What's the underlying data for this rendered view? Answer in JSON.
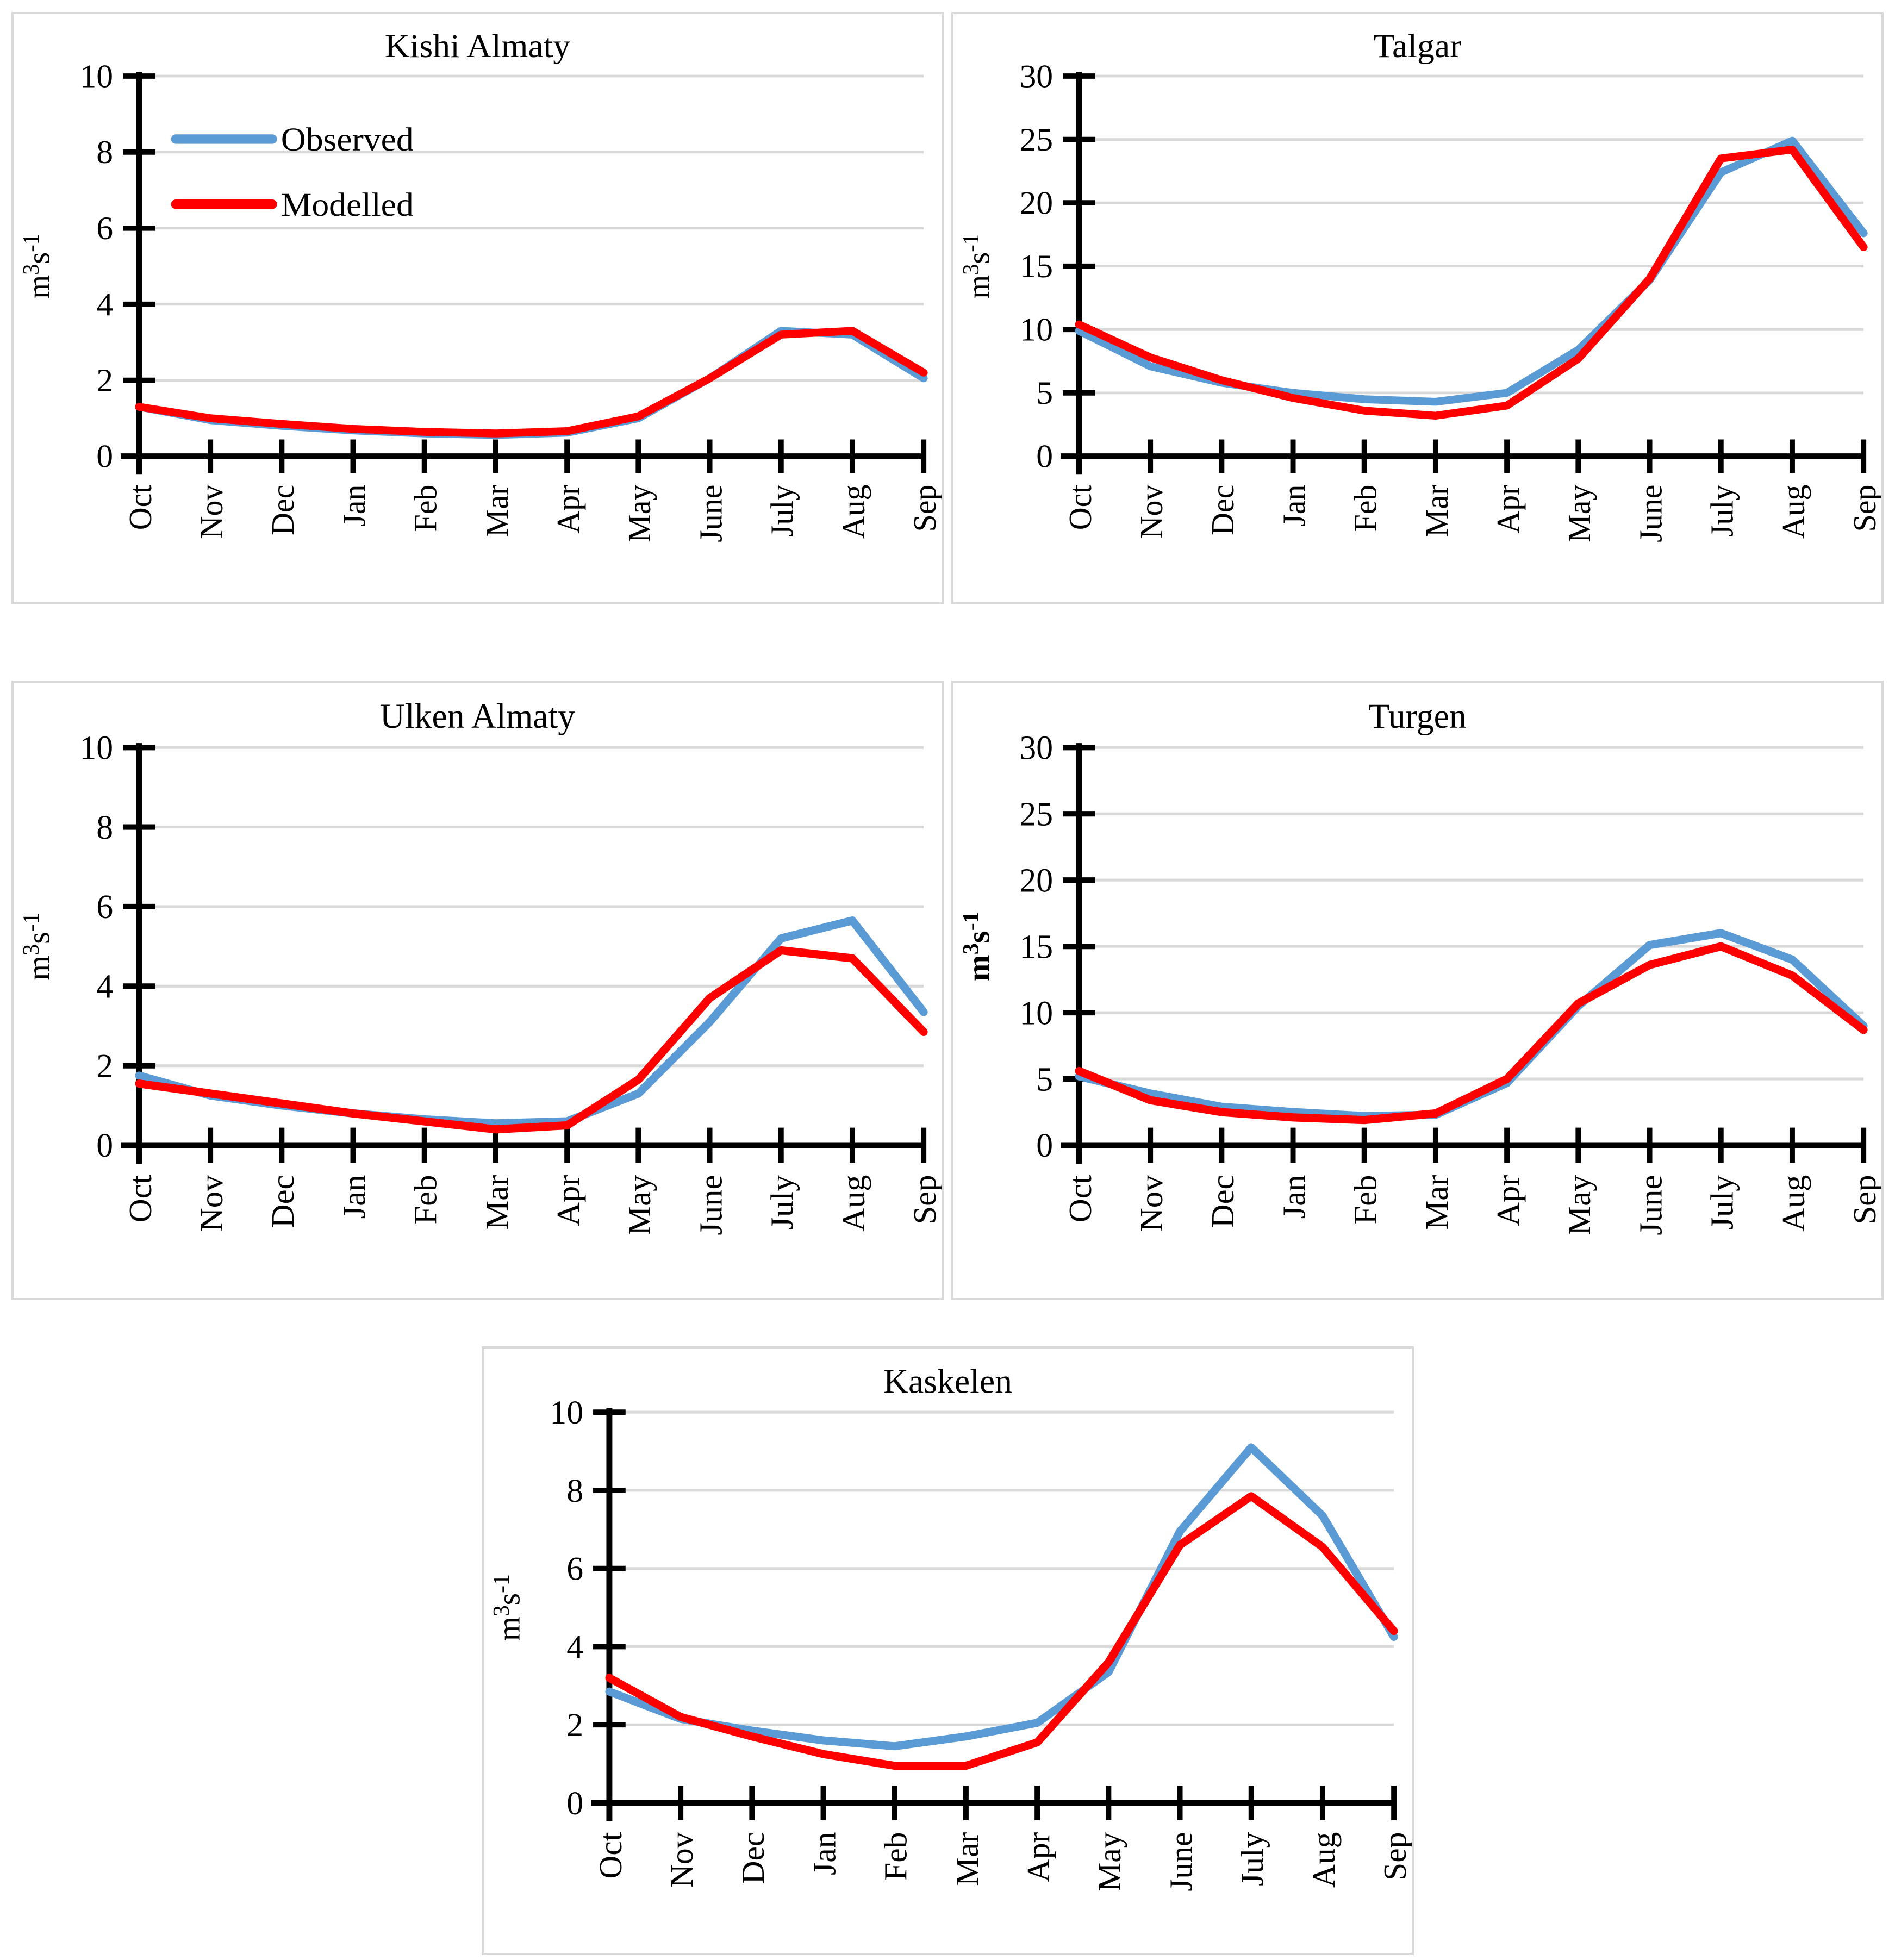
{
  "figure": {
    "background": "#ffffff",
    "panel_border": "#d9d9d9"
  },
  "colors": {
    "observed": "#5b9bd5",
    "modelled": "#ff0000",
    "gridline": "#d9d9d9",
    "axis": "#000000"
  },
  "legend": {
    "observed_label": "Observed",
    "modelled_label": "Modelled"
  },
  "months": [
    "Oct",
    "Nov",
    "Dec",
    "Jan",
    "Feb",
    "Mar",
    "Apr",
    "May",
    "June",
    "July",
    "Aug",
    "Sep"
  ],
  "chart_data": [
    {
      "type": "line",
      "title": "Kishi Almaty",
      "ylabel": "m³s⁻¹",
      "ylabel_parts": [
        [
          "m",
          false
        ],
        [
          "3",
          true
        ],
        [
          "s",
          false
        ],
        [
          "-1",
          true
        ]
      ],
      "ylabel_bold": false,
      "xlabel": "",
      "ylim": [
        0,
        10
      ],
      "yticks": [
        0,
        2,
        4,
        6,
        8,
        10
      ],
      "grid": true,
      "legend_position": "top-left-inside",
      "show_legend": true,
      "categories": [
        "Oct",
        "Nov",
        "Dec",
        "Jan",
        "Feb",
        "Mar",
        "Apr",
        "May",
        "June",
        "July",
        "Aug",
        "Sep"
      ],
      "series": [
        {
          "name": "Observed",
          "color_key": "observed",
          "values": [
            1.3,
            0.95,
            0.8,
            0.68,
            0.6,
            0.56,
            0.62,
            1.0,
            2.05,
            3.3,
            3.2,
            2.05
          ]
        },
        {
          "name": "Modelled",
          "color_key": "modelled",
          "values": [
            1.3,
            1.0,
            0.85,
            0.72,
            0.64,
            0.6,
            0.66,
            1.05,
            2.05,
            3.2,
            3.3,
            2.2
          ]
        }
      ]
    },
    {
      "type": "line",
      "title": "Talgar",
      "ylabel": "m³s⁻¹",
      "ylabel_parts": [
        [
          "m",
          false
        ],
        [
          "3",
          true
        ],
        [
          "s",
          false
        ],
        [
          "-1",
          true
        ]
      ],
      "ylabel_bold": false,
      "xlabel": "",
      "ylim": [
        0,
        30
      ],
      "yticks": [
        0,
        5,
        10,
        15,
        20,
        25,
        30
      ],
      "grid": true,
      "show_legend": false,
      "categories": [
        "Oct",
        "Nov",
        "Dec",
        "Jan",
        "Feb",
        "Mar",
        "Apr",
        "May",
        "June",
        "July",
        "Aug",
        "Sep"
      ],
      "series": [
        {
          "name": "Observed",
          "color_key": "observed",
          "values": [
            9.9,
            7.1,
            5.8,
            5.0,
            4.5,
            4.3,
            5.0,
            8.4,
            13.9,
            22.4,
            24.9,
            17.6
          ]
        },
        {
          "name": "Modelled",
          "color_key": "modelled",
          "values": [
            10.4,
            7.8,
            6.0,
            4.6,
            3.6,
            3.2,
            4.0,
            7.7,
            14.0,
            23.5,
            24.2,
            16.5
          ]
        }
      ]
    },
    {
      "type": "line",
      "title": "Ulken Almaty",
      "ylabel": "m³s⁻¹",
      "ylabel_parts": [
        [
          "m",
          false
        ],
        [
          "3",
          true
        ],
        [
          "s",
          false
        ],
        [
          "-1",
          true
        ]
      ],
      "ylabel_bold": false,
      "xlabel": "",
      "ylim": [
        0,
        10
      ],
      "yticks": [
        0,
        2,
        4,
        6,
        8,
        10
      ],
      "grid": true,
      "show_legend": false,
      "categories": [
        "Oct",
        "Nov",
        "Dec",
        "Jan",
        "Feb",
        "Mar",
        "Apr",
        "May",
        "June",
        "July",
        "Aug",
        "Sep"
      ],
      "series": [
        {
          "name": "Observed",
          "color_key": "observed",
          "values": [
            1.75,
            1.25,
            1.0,
            0.8,
            0.65,
            0.55,
            0.6,
            1.3,
            3.1,
            5.2,
            5.65,
            3.35
          ]
        },
        {
          "name": "Modelled",
          "color_key": "modelled",
          "values": [
            1.55,
            1.3,
            1.05,
            0.8,
            0.6,
            0.4,
            0.5,
            1.65,
            3.7,
            4.9,
            4.7,
            2.85
          ]
        }
      ]
    },
    {
      "type": "line",
      "title": "Turgen",
      "ylabel": "m³s⁻¹",
      "ylabel_parts": [
        [
          "m",
          false
        ],
        [
          "3",
          true
        ],
        [
          "s",
          false
        ],
        [
          "-1",
          true
        ]
      ],
      "ylabel_bold": true,
      "xlabel": "",
      "ylim": [
        0,
        30
      ],
      "yticks": [
        0,
        5,
        10,
        15,
        20,
        25,
        30
      ],
      "grid": true,
      "show_legend": false,
      "categories": [
        "Oct",
        "Nov",
        "Dec",
        "Jan",
        "Feb",
        "Mar",
        "Apr",
        "May",
        "June",
        "July",
        "Aug",
        "Sep"
      ],
      "series": [
        {
          "name": "Observed",
          "color_key": "observed",
          "values": [
            5.2,
            3.9,
            2.9,
            2.5,
            2.2,
            2.3,
            4.7,
            10.5,
            15.1,
            16.0,
            14.0,
            9.0
          ]
        },
        {
          "name": "Modelled",
          "color_key": "modelled",
          "values": [
            5.6,
            3.4,
            2.5,
            2.1,
            1.9,
            2.4,
            5.0,
            10.7,
            13.6,
            15.0,
            12.8,
            8.7
          ]
        }
      ]
    },
    {
      "type": "line",
      "title": "Kaskelen",
      "ylabel": "m³s⁻¹",
      "ylabel_parts": [
        [
          "m",
          false
        ],
        [
          "3",
          true
        ],
        [
          "s",
          false
        ],
        [
          "-1",
          true
        ]
      ],
      "ylabel_bold": false,
      "xlabel": "",
      "ylim": [
        0,
        10
      ],
      "yticks": [
        0,
        2,
        4,
        6,
        8,
        10
      ],
      "grid": true,
      "show_legend": false,
      "categories": [
        "Oct",
        "Nov",
        "Dec",
        "Jan",
        "Feb",
        "Mar",
        "Apr",
        "May",
        "June",
        "July",
        "Aug",
        "Sep"
      ],
      "series": [
        {
          "name": "Observed",
          "color_key": "observed",
          "values": [
            2.85,
            2.15,
            1.85,
            1.6,
            1.45,
            1.7,
            2.05,
            3.35,
            6.95,
            9.1,
            7.35,
            4.25
          ]
        },
        {
          "name": "Modelled",
          "color_key": "modelled",
          "values": [
            3.2,
            2.2,
            1.7,
            1.25,
            0.95,
            0.95,
            1.55,
            3.6,
            6.6,
            7.85,
            6.55,
            4.4
          ]
        }
      ]
    }
  ]
}
